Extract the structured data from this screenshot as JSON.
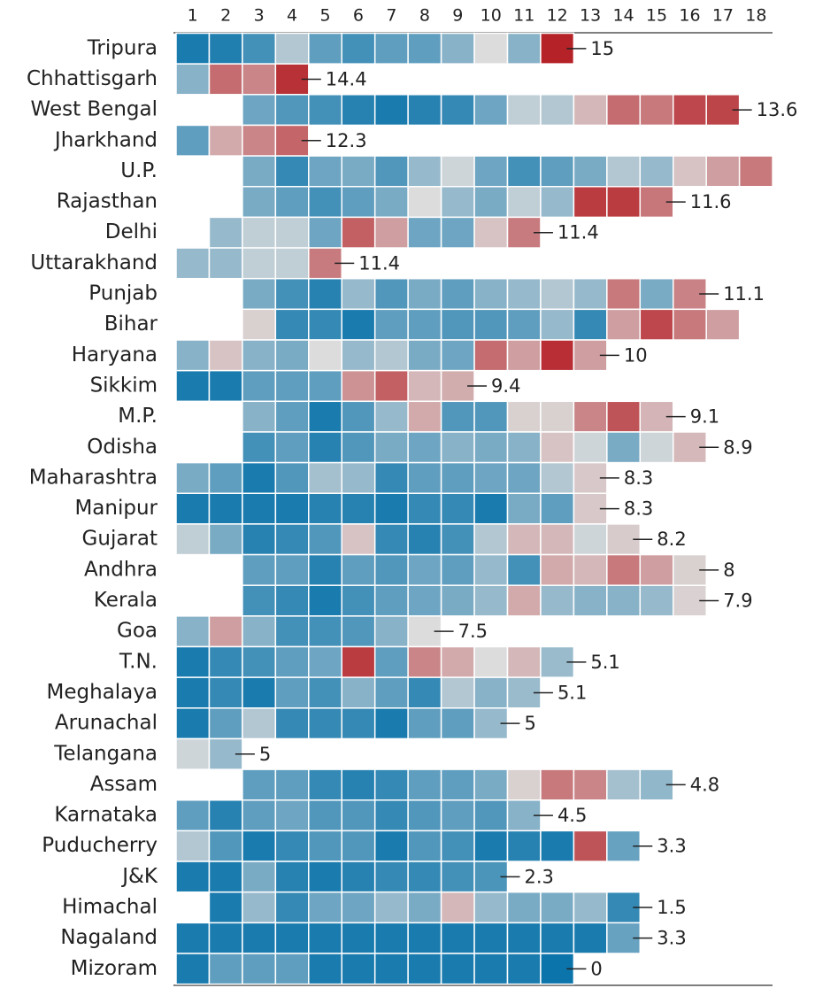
{
  "chart_data": {
    "type": "heatmap",
    "columns": [
      1,
      2,
      3,
      4,
      5,
      6,
      7,
      8,
      9,
      10,
      11,
      12,
      13,
      14,
      15,
      16,
      17,
      18
    ],
    "clim": [
      0,
      15
    ],
    "color_scale": {
      "low": "#0b74ab",
      "mid": "#dcdcdc",
      "high": "#b52228"
    },
    "rows": [
      {
        "name": "Tripura",
        "values": [
          0.5,
          0.8,
          2,
          6,
          3,
          2,
          3,
          3,
          4.5,
          7.5,
          4.5,
          15
        ]
      },
      {
        "name": "Chhattisgarh",
        "values": [
          4.5,
          12,
          11,
          14.4
        ]
      },
      {
        "name": "West Bengal",
        "values": [
          null,
          null,
          3.5,
          2.5,
          2,
          1,
          0.5,
          1,
          1.5,
          3.5,
          6.5,
          6,
          9,
          12,
          11.5,
          13.5,
          13.6
        ]
      },
      {
        "name": "Jharkhand",
        "values": [
          3,
          9.5,
          11,
          12.3
        ]
      },
      {
        "name": "U.P.",
        "values": [
          null,
          null,
          4,
          1.5,
          3.5,
          4,
          2.5,
          5,
          7,
          3.5,
          2,
          3,
          4,
          6,
          5,
          8.5,
          10,
          11.5
        ],
        "show_label": false
      },
      {
        "name": "Rajasthan",
        "values": [
          null,
          null,
          4,
          3,
          2,
          3,
          4,
          7.5,
          5,
          4,
          6.5,
          5,
          14,
          14,
          11.6
        ]
      },
      {
        "name": "Delhi",
        "values": [
          null,
          5,
          6.5,
          6.5,
          3.5,
          12.5,
          10,
          3.5,
          3.5,
          8.5,
          11.4
        ]
      },
      {
        "name": "Uttarakhand",
        "values": [
          5,
          5,
          6.5,
          6.5,
          11.4
        ]
      },
      {
        "name": "Punjab",
        "values": [
          null,
          null,
          4,
          2,
          1,
          5,
          2.5,
          4,
          3,
          4.5,
          5,
          6,
          5,
          11.5,
          4,
          11.1
        ]
      },
      {
        "name": "Bihar",
        "values": [
          null,
          null,
          8,
          1.5,
          1.5,
          0.5,
          3,
          3,
          2.5,
          2.5,
          3,
          5,
          1.5,
          10,
          13.5,
          11.5,
          10
        ],
        "show_label": false
      },
      {
        "name": "Haryana",
        "values": [
          4.5,
          8.5,
          4.5,
          4,
          7.5,
          5,
          6,
          4,
          3.5,
          12,
          10,
          14.5,
          10
        ]
      },
      {
        "name": "Sikkim",
        "values": [
          0.5,
          0.5,
          3,
          3,
          3,
          10.5,
          12.5,
          9,
          9.4
        ]
      },
      {
        "name": "M.P.",
        "values": [
          null,
          null,
          4.5,
          3,
          0.5,
          2.5,
          5,
          9.5,
          2.5,
          2.5,
          8,
          8,
          11,
          13,
          9.1
        ]
      },
      {
        "name": "Odisha",
        "values": [
          null,
          null,
          2,
          3,
          1,
          2.5,
          4,
          3.5,
          4.5,
          4,
          4.5,
          8.5,
          7,
          4,
          7,
          8.9
        ]
      },
      {
        "name": "Maharashtra",
        "values": [
          4,
          3,
          0.5,
          2.5,
          5.5,
          5,
          1.5,
          3,
          3,
          3.5,
          3.5,
          6,
          8.3
        ]
      },
      {
        "name": "Manipur",
        "values": [
          0.5,
          0.5,
          0.5,
          0.5,
          1,
          1,
          0.5,
          1.5,
          1.5,
          0.5,
          4,
          3,
          8.3
        ]
      },
      {
        "name": "Gujarat",
        "values": [
          6.5,
          4,
          1,
          1.5,
          2.5,
          8.5,
          1.5,
          1,
          2,
          6,
          9,
          9,
          7,
          8.2
        ]
      },
      {
        "name": "Andhra",
        "values": [
          null,
          null,
          3,
          3,
          1,
          3,
          2.5,
          3.5,
          3,
          5,
          2,
          9.5,
          9,
          11.5,
          10,
          8
        ]
      },
      {
        "name": "Kerala",
        "values": [
          null,
          null,
          2,
          1.5,
          0.5,
          2,
          3,
          3.5,
          4,
          5,
          9.5,
          5,
          4.5,
          4.5,
          5,
          7.9
        ]
      },
      {
        "name": "Goa",
        "values": [
          4.5,
          10,
          4.5,
          2,
          2,
          2.5,
          4.5,
          7.5
        ]
      },
      {
        "name": "T.N.",
        "values": [
          0.5,
          1.5,
          2,
          3,
          3.5,
          14,
          3,
          11,
          9.5,
          7.5,
          9,
          5.1
        ]
      },
      {
        "name": "Meghalaya",
        "values": [
          0.5,
          1.5,
          0.5,
          3,
          2,
          4.5,
          3,
          1.5,
          6,
          4.5,
          5.1
        ]
      },
      {
        "name": "Arunachal",
        "values": [
          0.5,
          3,
          6,
          1.5,
          1.5,
          1.5,
          0.5,
          3,
          3,
          5
        ]
      },
      {
        "name": "Telangana",
        "values": [
          7,
          5
        ]
      },
      {
        "name": "Assam",
        "values": [
          null,
          null,
          3,
          3,
          1.5,
          1,
          1.5,
          3,
          3,
          4,
          8,
          11.5,
          11,
          5.5,
          4.8
        ]
      },
      {
        "name": "Karnataka",
        "values": [
          3,
          1,
          3,
          3.5,
          2.5,
          2.5,
          1.5,
          2.5,
          3,
          2.5,
          4.5
        ]
      },
      {
        "name": "Puducherry",
        "values": [
          6,
          2.5,
          0.5,
          1.5,
          2.5,
          2.5,
          0.5,
          2.5,
          2,
          0.5,
          1,
          0.5,
          13,
          3.3
        ]
      },
      {
        "name": "J&K",
        "values": [
          0.5,
          0.5,
          4,
          1,
          0.5,
          1,
          1.5,
          1.5,
          2,
          2.3
        ]
      },
      {
        "name": "Himachal",
        "values": [
          null,
          0.5,
          5,
          1.5,
          3.5,
          3.5,
          5,
          4,
          9,
          5,
          4,
          4,
          5,
          1.5
        ]
      },
      {
        "name": "Nagaland",
        "values": [
          0.5,
          0.5,
          0.5,
          0.5,
          0.5,
          0.5,
          0.5,
          0.5,
          0.5,
          0.5,
          0.5,
          0.5,
          0.5,
          3.3
        ]
      },
      {
        "name": "Mizoram",
        "values": [
          0.5,
          3,
          3,
          3,
          0.5,
          0.5,
          0.5,
          0.5,
          0.5,
          0.5,
          0.5,
          0
        ]
      }
    ]
  }
}
